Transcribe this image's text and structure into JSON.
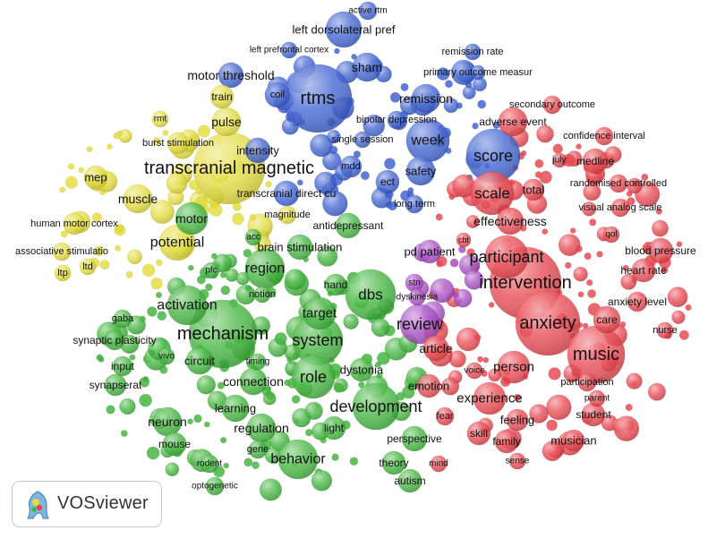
{
  "app": {
    "logo_text": "VOSviewer"
  },
  "clusters": {
    "yellow": {
      "color": "#e3dc3a",
      "stroke": "#b8b22b"
    },
    "blue": {
      "color": "#3c5fd0",
      "stroke": "#2c47a5"
    },
    "red": {
      "color": "#e8444d",
      "stroke": "#bb3038"
    },
    "green": {
      "color": "#3fb33b",
      "stroke": "#2e8c2b"
    },
    "purple": {
      "color": "#a54bc2",
      "stroke": "#7d3795"
    }
  },
  "terms": [
    {
      "label": "active rtm",
      "c": "blue"
    },
    {
      "label": "left dorsolateral pref",
      "c": "blue"
    },
    {
      "label": "left prefrontal cortex",
      "c": "blue"
    },
    {
      "label": "remission rate",
      "c": "blue"
    },
    {
      "label": "sham",
      "c": "blue"
    },
    {
      "label": "primary outcome measur",
      "c": "blue"
    },
    {
      "label": "motor threshold",
      "c": "blue"
    },
    {
      "label": "rtms",
      "c": "blue"
    },
    {
      "label": "coil",
      "c": "blue"
    },
    {
      "label": "remission",
      "c": "blue"
    },
    {
      "label": "bipolar depression",
      "c": "blue"
    },
    {
      "label": "single session",
      "c": "blue"
    },
    {
      "label": "week",
      "c": "blue"
    },
    {
      "label": "mdd",
      "c": "blue"
    },
    {
      "label": "ect",
      "c": "blue"
    },
    {
      "label": "safety",
      "c": "blue"
    },
    {
      "label": "long term",
      "c": "blue"
    },
    {
      "label": "score",
      "c": "blue"
    },
    {
      "label": "transcranial direct cu",
      "c": "blue"
    },
    {
      "label": "intensity",
      "c": "blue"
    },
    {
      "label": "secondary outcome",
      "c": "red"
    },
    {
      "label": "adverse event",
      "c": "red"
    },
    {
      "label": "confidence interval",
      "c": "red"
    },
    {
      "label": "july",
      "c": "red"
    },
    {
      "label": "medline",
      "c": "red"
    },
    {
      "label": "total",
      "c": "red"
    },
    {
      "label": "scale",
      "c": "red"
    },
    {
      "label": "randomised controlled",
      "c": "red"
    },
    {
      "label": "visual analog scale",
      "c": "red"
    },
    {
      "label": "effectiveness",
      "c": "red"
    },
    {
      "label": "qol",
      "c": "red"
    },
    {
      "label": "blood pressure",
      "c": "red"
    },
    {
      "label": "participant",
      "c": "red"
    },
    {
      "label": "heart rate",
      "c": "red"
    },
    {
      "label": "intervention",
      "c": "red"
    },
    {
      "label": "anxiety level",
      "c": "red"
    },
    {
      "label": "care",
      "c": "red"
    },
    {
      "label": "anxiety",
      "c": "red"
    },
    {
      "label": "nurse",
      "c": "red"
    },
    {
      "label": "music",
      "c": "red"
    },
    {
      "label": "article",
      "c": "red"
    },
    {
      "label": "person",
      "c": "red"
    },
    {
      "label": "voice",
      "c": "red"
    },
    {
      "label": "participation",
      "c": "red"
    },
    {
      "label": "parent",
      "c": "red"
    },
    {
      "label": "emotion",
      "c": "red"
    },
    {
      "label": "experience",
      "c": "red"
    },
    {
      "label": "student",
      "c": "red"
    },
    {
      "label": "fear",
      "c": "red"
    },
    {
      "label": "feeling",
      "c": "red"
    },
    {
      "label": "skill",
      "c": "red"
    },
    {
      "label": "family",
      "c": "red"
    },
    {
      "label": "musician",
      "c": "red"
    },
    {
      "label": "mind",
      "c": "red"
    },
    {
      "label": "sense",
      "c": "red"
    },
    {
      "label": "cbt",
      "c": "red"
    },
    {
      "label": "pd patient",
      "c": "purple"
    },
    {
      "label": "stn",
      "c": "purple"
    },
    {
      "label": "dyskinesia",
      "c": "purple"
    },
    {
      "label": "review",
      "c": "purple"
    },
    {
      "label": "rmt",
      "c": "yellow"
    },
    {
      "label": "train",
      "c": "yellow"
    },
    {
      "label": "pulse",
      "c": "yellow"
    },
    {
      "label": "burst stimulation",
      "c": "yellow"
    },
    {
      "label": "transcranial magnetic",
      "c": "yellow"
    },
    {
      "label": "mep",
      "c": "yellow"
    },
    {
      "label": "muscle",
      "c": "yellow"
    },
    {
      "label": "human motor cortex",
      "c": "yellow"
    },
    {
      "label": "potential",
      "c": "yellow"
    },
    {
      "label": "associative stimulatio",
      "c": "yellow"
    },
    {
      "label": "ltp",
      "c": "yellow"
    },
    {
      "label": "ltd",
      "c": "yellow"
    },
    {
      "label": "magnitude",
      "c": "yellow"
    },
    {
      "label": "motor",
      "c": "green"
    },
    {
      "label": "antidepressant",
      "c": "green"
    },
    {
      "label": "acc",
      "c": "green"
    },
    {
      "label": "brain stimulation",
      "c": "green"
    },
    {
      "label": "region",
      "c": "green"
    },
    {
      "label": "pfc",
      "c": "green"
    },
    {
      "label": "notion",
      "c": "green"
    },
    {
      "label": "hand",
      "c": "green"
    },
    {
      "label": "dbs",
      "c": "green"
    },
    {
      "label": "activation",
      "c": "green"
    },
    {
      "label": "target",
      "c": "green"
    },
    {
      "label": "gaba",
      "c": "green"
    },
    {
      "label": "mechanism",
      "c": "green"
    },
    {
      "label": "system",
      "c": "green"
    },
    {
      "label": "synaptic plasticity",
      "c": "green"
    },
    {
      "label": "vivo",
      "c": "green"
    },
    {
      "label": "circuit",
      "c": "green"
    },
    {
      "label": "timing",
      "c": "green"
    },
    {
      "label": "input",
      "c": "green"
    },
    {
      "label": "role",
      "c": "green"
    },
    {
      "label": "dystonia",
      "c": "green"
    },
    {
      "label": "synapserat",
      "c": "green"
    },
    {
      "label": "connection",
      "c": "green"
    },
    {
      "label": "learning",
      "c": "green"
    },
    {
      "label": "development",
      "c": "green"
    },
    {
      "label": "neuron",
      "c": "green"
    },
    {
      "label": "regulation",
      "c": "green"
    },
    {
      "label": "light",
      "c": "green"
    },
    {
      "label": "mouse",
      "c": "green"
    },
    {
      "label": "gene",
      "c": "green"
    },
    {
      "label": "perspective",
      "c": "green"
    },
    {
      "label": "behavior",
      "c": "green"
    },
    {
      "label": "rodent",
      "c": "green"
    },
    {
      "label": "theory",
      "c": "green"
    },
    {
      "label": "autism",
      "c": "green"
    },
    {
      "label": "optogenetic",
      "c": "green"
    }
  ]
}
